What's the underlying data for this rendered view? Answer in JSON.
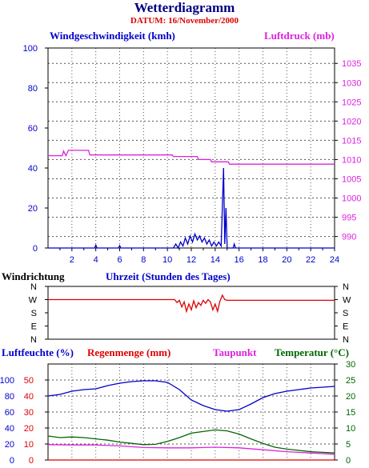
{
  "header": {
    "title": "Wetterdiagramm",
    "subtitle": "DATUM: 16/November/2000"
  },
  "labels": {
    "wind_speed": "Windgeschwindigkeit (kmh)",
    "pressure": "Luftdruck (mb)",
    "wind_direction": "Windrichtung",
    "time_axis": "Uhrzeit (Stunden des Tages)",
    "humidity": "Luftfeuchte (%)",
    "rain": "Regenmenge (mm)",
    "dewpoint": "Taupunkt",
    "temperature": "Temperatur (°C)"
  },
  "colors": {
    "wind": "#0000cc",
    "pressure": "#dd22dd",
    "direction": "#dd0000",
    "humidity": "#0000cc",
    "rain": "#dd0000",
    "dewpoint": "#dd22dd",
    "temperature": "#006600"
  },
  "chart_data": [
    {
      "type": "line",
      "panel": "top",
      "xlim": [
        0,
        24
      ],
      "x_ticks": [
        2,
        4,
        6,
        8,
        10,
        12,
        14,
        16,
        18,
        20,
        22,
        24
      ],
      "left_axis": {
        "ylim": [
          0,
          100
        ],
        "ticks": [
          0,
          20,
          40,
          60,
          80,
          100
        ]
      },
      "right_axis": {
        "ylim": [
          987,
          1039
        ],
        "ticks": [
          990,
          995,
          1000,
          1005,
          1010,
          1015,
          1020,
          1025,
          1030,
          1035
        ]
      },
      "series": [
        {
          "name": "Windgeschwindigkeit (kmh)",
          "axis": "left",
          "color": "#0000cc",
          "points": [
            [
              0,
              0
            ],
            [
              3.9,
              0
            ],
            [
              4.0,
              1.5
            ],
            [
              4.1,
              0
            ],
            [
              5.9,
              0
            ],
            [
              6.0,
              1.2
            ],
            [
              6.1,
              0
            ],
            [
              10.5,
              0
            ],
            [
              10.7,
              2
            ],
            [
              10.9,
              0
            ],
            [
              11.1,
              3
            ],
            [
              11.3,
              1
            ],
            [
              11.5,
              5
            ],
            [
              11.7,
              2
            ],
            [
              11.9,
              6
            ],
            [
              12.1,
              3
            ],
            [
              12.3,
              7
            ],
            [
              12.5,
              4
            ],
            [
              12.7,
              6
            ],
            [
              12.9,
              3
            ],
            [
              13.1,
              5
            ],
            [
              13.3,
              2
            ],
            [
              13.5,
              4
            ],
            [
              13.7,
              1
            ],
            [
              13.9,
              3
            ],
            [
              14.1,
              1
            ],
            [
              14.3,
              3
            ],
            [
              14.5,
              1
            ],
            [
              14.7,
              40
            ],
            [
              14.8,
              2
            ],
            [
              14.9,
              20
            ],
            [
              15.0,
              0
            ],
            [
              15.5,
              0
            ],
            [
              15.6,
              2
            ],
            [
              15.7,
              0
            ],
            [
              24,
              0
            ]
          ]
        },
        {
          "name": "Luftdruck (mb)",
          "axis": "right",
          "color": "#dd22dd",
          "points": [
            [
              0,
              1011
            ],
            [
              1.2,
              1011
            ],
            [
              1.3,
              1012.2
            ],
            [
              1.5,
              1011
            ],
            [
              1.7,
              1012.4
            ],
            [
              3.4,
              1012.4
            ],
            [
              3.5,
              1011.2
            ],
            [
              10.4,
              1011.2
            ],
            [
              10.5,
              1010.8
            ],
            [
              12.5,
              1010.8
            ],
            [
              12.6,
              1010
            ],
            [
              13.6,
              1010
            ],
            [
              13.7,
              1009.4
            ],
            [
              15.1,
              1009.4
            ],
            [
              15.2,
              1008.8
            ],
            [
              24,
              1008.8
            ]
          ]
        }
      ]
    },
    {
      "type": "line",
      "panel": "middle",
      "title": "Windrichtung",
      "xlabel": "Uhrzeit (Stunden des Tages)",
      "xlim": [
        0,
        24
      ],
      "categories": [
        "N",
        "W",
        "S",
        "E",
        "N"
      ],
      "series": [
        {
          "name": "Windrichtung",
          "color": "#dd0000",
          "points": [
            [
              0,
              270
            ],
            [
              10.6,
              270
            ],
            [
              10.8,
              250
            ],
            [
              11.0,
              265
            ],
            [
              11.2,
              220
            ],
            [
              11.4,
              255
            ],
            [
              11.6,
              190
            ],
            [
              11.8,
              240
            ],
            [
              12.0,
              200
            ],
            [
              12.2,
              262
            ],
            [
              12.4,
              215
            ],
            [
              12.6,
              250
            ],
            [
              12.8,
              230
            ],
            [
              13.0,
              265
            ],
            [
              13.2,
              245
            ],
            [
              13.4,
              270
            ],
            [
              13.6,
              255
            ],
            [
              13.8,
              200
            ],
            [
              14.0,
              240
            ],
            [
              14.2,
              190
            ],
            [
              14.4,
              260
            ],
            [
              14.6,
              300
            ],
            [
              14.8,
              270
            ],
            [
              15.0,
              265
            ],
            [
              24,
              265
            ]
          ]
        }
      ]
    },
    {
      "type": "line",
      "panel": "bottom",
      "xlim": [
        0,
        24
      ],
      "axes": {
        "humidity": {
          "ylim": [
            0,
            120
          ],
          "ticks": [
            0,
            20,
            40,
            60,
            80,
            100
          ]
        },
        "rain": {
          "ylim": [
            0,
            60
          ],
          "ticks": [
            0,
            10,
            20,
            30,
            40,
            50
          ]
        },
        "temperature": {
          "ylim": [
            0,
            30
          ],
          "ticks": [
            0,
            5,
            10,
            15,
            20,
            25,
            30
          ]
        }
      },
      "series": [
        {
          "name": "Luftfeuchte (%)",
          "axis": "humidity",
          "color": "#0000cc",
          "points": [
            [
              0,
              80
            ],
            [
              1,
              82
            ],
            [
              2,
              86
            ],
            [
              3,
              88
            ],
            [
              4,
              89
            ],
            [
              5,
              93
            ],
            [
              6,
              96
            ],
            [
              7,
              98
            ],
            [
              8,
              99
            ],
            [
              9,
              99
            ],
            [
              10,
              97
            ],
            [
              11,
              88
            ],
            [
              12,
              75
            ],
            [
              13,
              68
            ],
            [
              14,
              63
            ],
            [
              15,
              61
            ],
            [
              16,
              63
            ],
            [
              17,
              70
            ],
            [
              18,
              78
            ],
            [
              19,
              83
            ],
            [
              20,
              86
            ],
            [
              21,
              88
            ],
            [
              22,
              90
            ],
            [
              23,
              91
            ],
            [
              24,
              92
            ]
          ]
        },
        {
          "name": "Taupunkt",
          "axis": "temperature",
          "color": "#dd22dd",
          "points": [
            [
              0,
              4.8
            ],
            [
              2,
              4.7
            ],
            [
              4,
              4.7
            ],
            [
              6,
              4.4
            ],
            [
              8,
              3.9
            ],
            [
              10,
              3.8
            ],
            [
              12,
              3.8
            ],
            [
              14,
              4.0
            ],
            [
              16,
              3.8
            ],
            [
              18,
              3.2
            ],
            [
              20,
              2.6
            ],
            [
              22,
              2.2
            ],
            [
              24,
              1.8
            ]
          ]
        },
        {
          "name": "Temperatur (°C)",
          "axis": "temperature",
          "color": "#006600",
          "points": [
            [
              0,
              7.5
            ],
            [
              1,
              7.0
            ],
            [
              2,
              7.2
            ],
            [
              3,
              7.0
            ],
            [
              4,
              6.6
            ],
            [
              5,
              6.2
            ],
            [
              6,
              5.6
            ],
            [
              7,
              5.2
            ],
            [
              8,
              4.8
            ],
            [
              9,
              4.9
            ],
            [
              10,
              5.8
            ],
            [
              11,
              7.0
            ],
            [
              12,
              8.4
            ],
            [
              13,
              8.9
            ],
            [
              14,
              9.4
            ],
            [
              15,
              9.1
            ],
            [
              16,
              8.1
            ],
            [
              17,
              6.6
            ],
            [
              18,
              5.2
            ],
            [
              19,
              4.0
            ],
            [
              20,
              3.4
            ],
            [
              21,
              3.0
            ],
            [
              22,
              2.6
            ],
            [
              23,
              2.4
            ],
            [
              24,
              2.2
            ]
          ]
        },
        {
          "name": "Regenmenge (mm)",
          "axis": "rain",
          "color": "#dd0000",
          "points": [
            [
              0,
              0
            ],
            [
              24,
              0
            ]
          ]
        }
      ]
    }
  ]
}
